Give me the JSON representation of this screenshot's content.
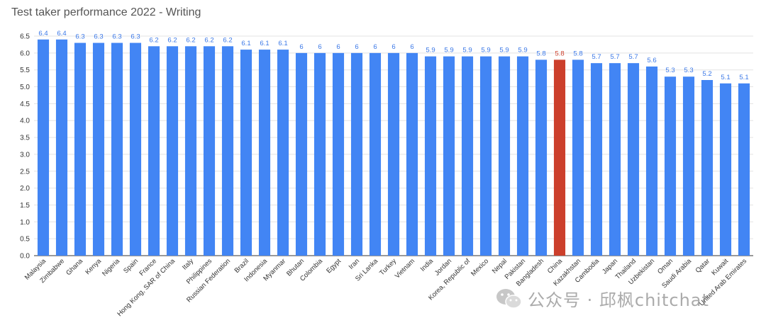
{
  "chart_data": {
    "type": "bar",
    "title": "Test taker performance 2022 - Writing",
    "xlabel": "",
    "ylabel": "",
    "ylim": [
      0,
      6.5
    ],
    "yticks": [
      "0.0",
      "0.5",
      "1.0",
      "1.5",
      "2.0",
      "2.5",
      "3.0",
      "3.5",
      "4.0",
      "4.5",
      "5.0",
      "5.5",
      "6.0",
      "6.5"
    ],
    "grid": true,
    "legend": "none",
    "categories": [
      "Malaysia",
      "Zimbabwe",
      "Ghana",
      "Kenya",
      "Nigeria",
      "Spain",
      "France",
      "Hong Kong, SAR of China",
      "Italy",
      "Philippines",
      "Russian Federation",
      "Brazil",
      "Indonesia",
      "Myanmar",
      "Bhutan",
      "Colombia",
      "Egypt",
      "Iran",
      "Sri Lanka",
      "Turkey",
      "Vietnam",
      "India",
      "Jordan",
      "Korea, Republic of",
      "Mexico",
      "Nepal",
      "Pakistan",
      "Bangladesh",
      "China",
      "Kazakhstan",
      "Cambodia",
      "Japan",
      "Thailand",
      "Uzbekistan",
      "Oman",
      "Saudi Arabia",
      "Qatar",
      "Kuwait",
      "United Arab Emirates"
    ],
    "values": [
      6.4,
      6.4,
      6.3,
      6.3,
      6.3,
      6.3,
      6.2,
      6.2,
      6.2,
      6.2,
      6.2,
      6.1,
      6.1,
      6.1,
      6,
      6,
      6,
      6,
      6,
      6,
      6,
      5.9,
      5.9,
      5.9,
      5.9,
      5.9,
      5.9,
      5.8,
      5.8,
      5.8,
      5.7,
      5.7,
      5.7,
      5.6,
      5.3,
      5.3,
      5.2,
      5.1,
      5.1
    ],
    "data_labels": [
      "6.4",
      "6.4",
      "6.3",
      "6.3",
      "6.3",
      "6.3",
      "6.2",
      "6.2",
      "6.2",
      "6.2",
      "6.2",
      "6.1",
      "6.1",
      "6.1",
      "6",
      "6",
      "6",
      "6",
      "6",
      "6",
      "6",
      "5.9",
      "5.9",
      "5.9",
      "5.9",
      "5.9",
      "5.9",
      "5.8",
      "5.8",
      "5.8",
      "5.7",
      "5.7",
      "5.7",
      "5.6",
      "5.3",
      "5.3",
      "5.2",
      "5.1",
      "5.1"
    ],
    "highlight_category": "China",
    "colors": {
      "bar": "#4285f4",
      "highlight": "#cc3f2b",
      "label": "#3b78e7",
      "highlight_label": "#cc3f2b"
    }
  },
  "watermark": {
    "text": "公众号 · 邱枫chitchat",
    "icon": "wechat-icon"
  }
}
